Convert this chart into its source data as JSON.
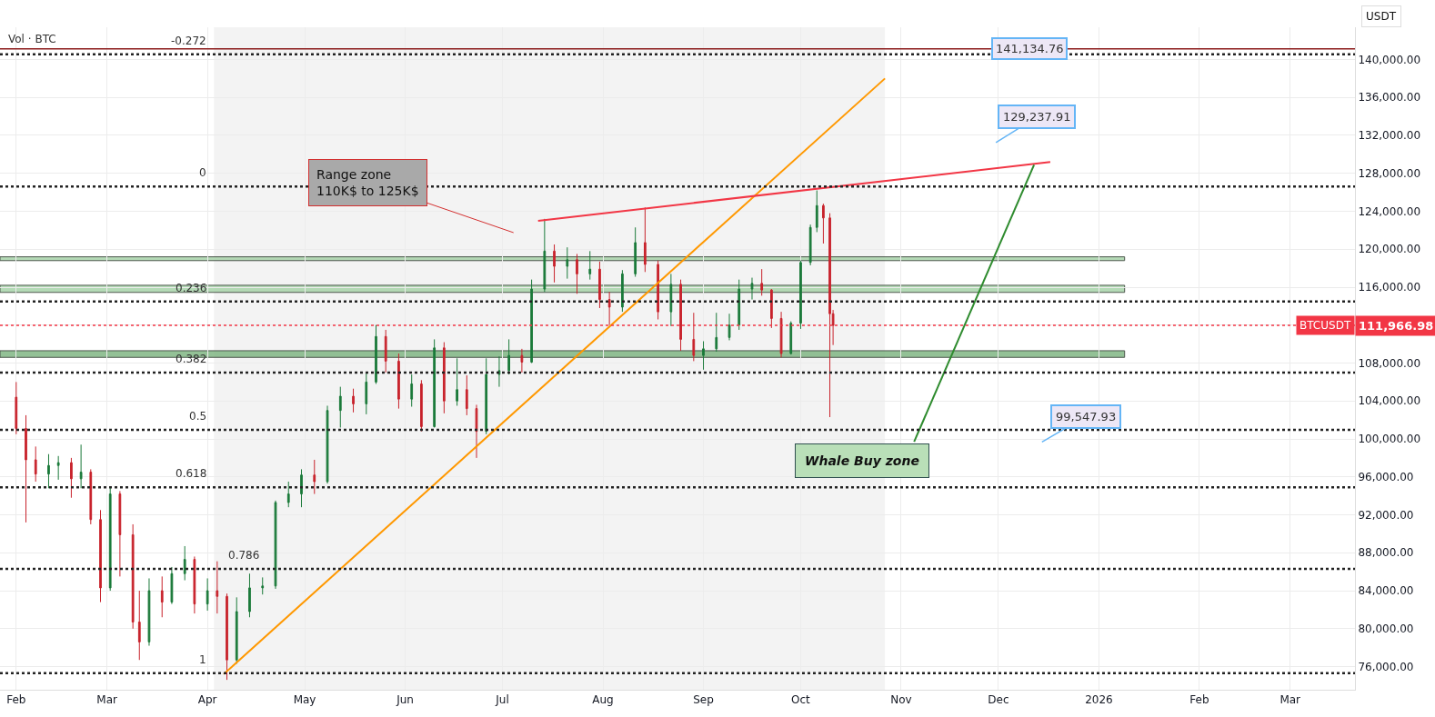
{
  "chart_data": {
    "type": "candlestick",
    "series": [
      {
        "type": "line",
        "color": "#ff9800",
        "x": [
          "2025-04-06",
          "2025-10-27"
        ],
        "values": [
          75200,
          138000
        ]
      },
      {
        "type": "line",
        "color": "#f23645",
        "x": [
          "2025-07-12",
          "2025-12-17"
        ],
        "values": [
          123000,
          129200
        ]
      },
      {
        "type": "line",
        "color": "#2e8b2e",
        "x": [
          "2025-11-05",
          "2025-12-12"
        ],
        "values": [
          99700,
          128900
        ]
      },
      {
        "colors": [
          "#c8232c",
          "#c8232c",
          "#c8232c",
          "#1b7a3a",
          "#1b7a3a",
          "#c8232c",
          "#1b7a3a",
          "#c8232c",
          "#c8232c",
          "#1b7a3a",
          "#c8232c",
          "#c8232c",
          "#c8232c",
          "#1b7a3a",
          "#c8232c",
          "#1b7a3a",
          "#1b7a3a",
          "#c8232c",
          "#1b7a3a",
          "#c8232c",
          "#c8232c",
          "#1b7a3a",
          "#1b7a3a",
          "#1b7a3a",
          "#1b7a3a",
          "#1b7a3a",
          "#1b7a3a",
          "#c8232c",
          "#1b7a3a",
          "#1b7a3a",
          "#c8232c",
          "#1b7a3a",
          "#1b7a3a",
          "#c8232c",
          "#c8232c",
          "#1b7a3a",
          "#c8232c",
          "#1b7a3a",
          "#c8232c",
          "#1b7a3a",
          "#c8232c",
          "#c8232c",
          "#1b7a3a",
          "#1b7a3a",
          "#1b7a3a",
          "#c8232c",
          "#1b7a3a",
          "#1b7a3a",
          "#c8232c",
          "#1b7a3a",
          "#c8232c",
          "#1b7a3a",
          "#c8232c",
          "#c8232c",
          "#1b7a3a",
          "#1b7a3a",
          "#c8232c",
          "#c8232c",
          "#1b7a3a",
          "#c8232c",
          "#c8232c",
          "#1b7a3a",
          "#1b7a3a",
          "#1b7a3a",
          "#1b7a3a",
          "#1b7a3a",
          "#c8232c",
          "#c8232c",
          "#c8232c",
          "#1b7a3a",
          "#1b7a3a",
          "#1b7a3a",
          "#1b7a3a",
          "#c8232c",
          "#c8232c",
          "#c8232c"
        ],
        "x": [
          "2025-02-01",
          "2025-02-04",
          "2025-02-07",
          "2025-02-11",
          "2025-02-14",
          "2025-02-18",
          "2025-02-21",
          "2025-02-24",
          "2025-02-27",
          "2025-03-02",
          "2025-03-05",
          "2025-03-09",
          "2025-03-11",
          "2025-03-14",
          "2025-03-18",
          "2025-03-21",
          "2025-03-25",
          "2025-03-28",
          "2025-04-01",
          "2025-04-04",
          "2025-04-07",
          "2025-04-10",
          "2025-04-14",
          "2025-04-18",
          "2025-04-22",
          "2025-04-26",
          "2025-04-30",
          "2025-05-04",
          "2025-05-08",
          "2025-05-12",
          "2025-05-16",
          "2025-05-20",
          "2025-05-23",
          "2025-05-26",
          "2025-05-30",
          "2025-06-03",
          "2025-06-06",
          "2025-06-10",
          "2025-06-13",
          "2025-06-17",
          "2025-06-20",
          "2025-06-23",
          "2025-06-26",
          "2025-06-30",
          "2025-07-03",
          "2025-07-07",
          "2025-07-10",
          "2025-07-14",
          "2025-07-17",
          "2025-07-21",
          "2025-07-24",
          "2025-07-28",
          "2025-07-31",
          "2025-08-03",
          "2025-08-07",
          "2025-08-11",
          "2025-08-14",
          "2025-08-18",
          "2025-08-22",
          "2025-08-25",
          "2025-08-29",
          "2025-09-01",
          "2025-09-05",
          "2025-09-09",
          "2025-09-12",
          "2025-09-16",
          "2025-09-19",
          "2025-09-22",
          "2025-09-25",
          "2025-09-28",
          "2025-10-01",
          "2025-10-04",
          "2025-10-06",
          "2025-10-08",
          "2025-10-10",
          "2025-10-11"
        ],
        "ohlc": [
          [
            104400,
            106000,
            100500,
            101100
          ],
          [
            101100,
            102500,
            91200,
            97800
          ],
          [
            97800,
            99200,
            95500,
            96300
          ],
          [
            96300,
            98400,
            94800,
            97200
          ],
          [
            97200,
            98200,
            95700,
            97500
          ],
          [
            97500,
            98000,
            93800,
            95800
          ],
          [
            95800,
            99400,
            94800,
            96500
          ],
          [
            96500,
            96800,
            91000,
            91500
          ],
          [
            91500,
            92500,
            82800,
            84300
          ],
          [
            84300,
            95000,
            84000,
            94200
          ],
          [
            94200,
            94500,
            85500,
            89900
          ],
          [
            89900,
            91000,
            80000,
            80700
          ],
          [
            80700,
            84000,
            76700,
            78600
          ],
          [
            78600,
            85300,
            78200,
            84000
          ],
          [
            84000,
            85500,
            81200,
            82800
          ],
          [
            82800,
            86500,
            82600,
            85800
          ],
          [
            85800,
            88700,
            85100,
            87300
          ],
          [
            87300,
            87600,
            81600,
            82600
          ],
          [
            82600,
            85300,
            81900,
            84000
          ],
          [
            84000,
            87100,
            81600,
            83400
          ],
          [
            83400,
            83700,
            74600,
            76700
          ],
          [
            76700,
            83300,
            76300,
            81800
          ],
          [
            81800,
            85800,
            81200,
            84300
          ],
          [
            84300,
            85400,
            83600,
            84500
          ],
          [
            84500,
            93500,
            84200,
            93300
          ],
          [
            93300,
            95500,
            92800,
            94200
          ],
          [
            94200,
            96800,
            92800,
            96200
          ],
          [
            96200,
            97800,
            94200,
            95500
          ],
          [
            95500,
            103500,
            95300,
            103000
          ],
          [
            103000,
            105500,
            101200,
            104500
          ],
          [
            104500,
            105300,
            102800,
            103700
          ],
          [
            103700,
            107000,
            102600,
            106000
          ],
          [
            106000,
            112000,
            105800,
            110800
          ],
          [
            110800,
            111500,
            107000,
            108200
          ],
          [
            108200,
            109000,
            103200,
            104200
          ],
          [
            104200,
            106800,
            103400,
            105800
          ],
          [
            105800,
            106200,
            100800,
            101300
          ],
          [
            101300,
            110500,
            101200,
            109600
          ],
          [
            109600,
            110200,
            102700,
            104000
          ],
          [
            104000,
            108500,
            103500,
            105200
          ],
          [
            105200,
            106700,
            102500,
            103200
          ],
          [
            103200,
            103600,
            98000,
            100800
          ],
          [
            100800,
            108500,
            100500,
            106800
          ],
          [
            106800,
            108700,
            105500,
            107200
          ],
          [
            107200,
            110500,
            106800,
            108800
          ],
          [
            108800,
            109500,
            107000,
            108100
          ],
          [
            108100,
            116800,
            108000,
            115800
          ],
          [
            115800,
            123200,
            115500,
            119800
          ],
          [
            119800,
            120500,
            116500,
            118200
          ],
          [
            118200,
            120200,
            116900,
            118900
          ],
          [
            118900,
            119500,
            115300,
            117400
          ],
          [
            117400,
            119800,
            116800,
            117900
          ],
          [
            117900,
            118700,
            113800,
            114700
          ],
          [
            114700,
            115500,
            112000,
            113900
          ],
          [
            113900,
            117800,
            113400,
            117400
          ],
          [
            117400,
            122300,
            117100,
            120700
          ],
          [
            120700,
            124400,
            117600,
            118400
          ],
          [
            118400,
            118800,
            112600,
            113400
          ],
          [
            113400,
            117400,
            111900,
            116300
          ],
          [
            116300,
            116800,
            109300,
            110500
          ],
          [
            110500,
            113300,
            108200,
            108800
          ],
          [
            108800,
            110300,
            107300,
            109500
          ],
          [
            109500,
            113300,
            109200,
            110700
          ],
          [
            110700,
            113200,
            110400,
            112000
          ],
          [
            112000,
            116800,
            111500,
            115800
          ],
          [
            115800,
            117000,
            114700,
            116400
          ],
          [
            116400,
            117900,
            115100,
            115700
          ],
          [
            115700,
            115800,
            111700,
            112700
          ],
          [
            112700,
            113400,
            108600,
            109000
          ],
          [
            109000,
            112400,
            108900,
            112200
          ],
          [
            112200,
            118800,
            111600,
            118600
          ],
          [
            118600,
            122600,
            118300,
            122300
          ],
          [
            122300,
            126200,
            121800,
            124600
          ],
          [
            124600,
            124800,
            120600,
            123300
          ],
          [
            123300,
            123800,
            102300,
            113200
          ],
          [
            113200,
            113600,
            109900,
            111967
          ]
        ]
      }
    ],
    "xlim": [
      "2025-01-27",
      "2026-03-21"
    ],
    "xticks": [
      {
        "value": "2025-02-01",
        "label": "Feb"
      },
      {
        "value": "2025-03-01",
        "label": "Mar"
      },
      {
        "value": "2025-04-01",
        "label": "Apr"
      },
      {
        "value": "2025-05-01",
        "label": "May"
      },
      {
        "value": "2025-06-01",
        "label": "Jun"
      },
      {
        "value": "2025-07-01",
        "label": "Jul"
      },
      {
        "value": "2025-08-01",
        "label": "Aug"
      },
      {
        "value": "2025-09-01",
        "label": "Sep"
      },
      {
        "value": "2025-10-01",
        "label": "Oct"
      },
      {
        "value": "2025-11-01",
        "label": "Nov"
      },
      {
        "value": "2025-12-01",
        "label": "Dec"
      },
      {
        "value": "2026-01-01",
        "label": "2026"
      },
      {
        "value": "2026-02-01",
        "label": "Feb"
      },
      {
        "value": "2026-03-01",
        "label": "Mar"
      }
    ],
    "ylim": [
      73560,
      143400
    ],
    "yticks": [
      {
        "value": 76000,
        "label": "76,000.00"
      },
      {
        "value": 80000,
        "label": "80,000.00"
      },
      {
        "value": 84000,
        "label": "84,000.00"
      },
      {
        "value": 88000,
        "label": "88,000.00"
      },
      {
        "value": 92000,
        "label": "92,000.00"
      },
      {
        "value": 96000,
        "label": "96,000.00"
      },
      {
        "value": 100000,
        "label": "100,000.00"
      },
      {
        "value": 104000,
        "label": "104,000.00"
      },
      {
        "value": 108000,
        "label": "108,000.00"
      },
      {
        "value": 112000,
        "label": null
      },
      {
        "value": 116000,
        "label": "116,000.00"
      },
      {
        "value": 120000,
        "label": "120,000.00"
      },
      {
        "value": 124000,
        "label": "124,000.00"
      },
      {
        "value": 128000,
        "label": "128,000.00"
      },
      {
        "value": 132000,
        "label": "132,000.00"
      },
      {
        "value": 136000,
        "label": "136,000.00"
      },
      {
        "value": 140000,
        "label": "140,000.00"
      }
    ],
    "ylabel": "USDT",
    "grid": true,
    "ref_lines": [
      {
        "axis": "y",
        "value": 140550,
        "line_style": "dotted"
      },
      {
        "axis": "y",
        "value": 126600,
        "line_style": "dotted"
      },
      {
        "axis": "y",
        "value": 114500,
        "line_style": "dotted"
      },
      {
        "axis": "y",
        "value": 107000,
        "line_style": "dotted"
      },
      {
        "axis": "y",
        "value": 100950,
        "line_style": "dotted"
      },
      {
        "axis": "y",
        "value": 94900,
        "line_style": "dotted"
      },
      {
        "axis": "y",
        "value": 86300,
        "line_style": "dotted"
      },
      {
        "axis": "y",
        "value": 75300,
        "line_style": "dotted"
      },
      {
        "axis": "y",
        "value": 141134.76,
        "label": "141,134.76",
        "color": "#8b1a1a",
        "line_style": "solid"
      },
      {
        "axis": "y",
        "value": 111966.98,
        "label": "111,966.98",
        "color": "#f23645",
        "line_style": "dotted"
      }
    ],
    "bands": [
      {
        "axis": "x",
        "from": "2025-04-03",
        "to": "2025-10-27",
        "color": "#f3f3f3"
      },
      {
        "axis": "y",
        "from": 108600,
        "to": 109300,
        "color": "#81b784"
      },
      {
        "axis": "y",
        "from": 115450,
        "to": 116200,
        "color": "#a8d4aa"
      },
      {
        "axis": "y",
        "from": 118800,
        "to": 119200,
        "color": "#a8d4aa"
      }
    ],
    "annotations": [
      "Vol · BTC",
      "Range zone\n110K$ to 125K$",
      "Whale Buy zone",
      "129,237.91",
      "99,547.93",
      {
        "text": "BTCUSDT",
        "x": "2026-03-21",
        "y": 111966.98
      },
      {
        "text": "-0.272",
        "x": "2025-04-03",
        "y": 140550
      },
      {
        "text": "0",
        "x": "2025-04-03",
        "y": 126600
      },
      {
        "text": "0.236",
        "x": "2025-04-03",
        "y": 114500
      },
      {
        "text": "0.382",
        "x": "2025-04-03",
        "y": 107000
      },
      {
        "text": "0.5",
        "x": "2025-04-03",
        "y": 100950
      },
      {
        "text": "0.618",
        "x": "2025-04-03",
        "y": 94900
      },
      {
        "text": "0.786",
        "x": "2025-04-03",
        "y": 86300
      },
      {
        "text": "1",
        "x": "2025-04-03",
        "y": 75300
      }
    ]
  }
}
